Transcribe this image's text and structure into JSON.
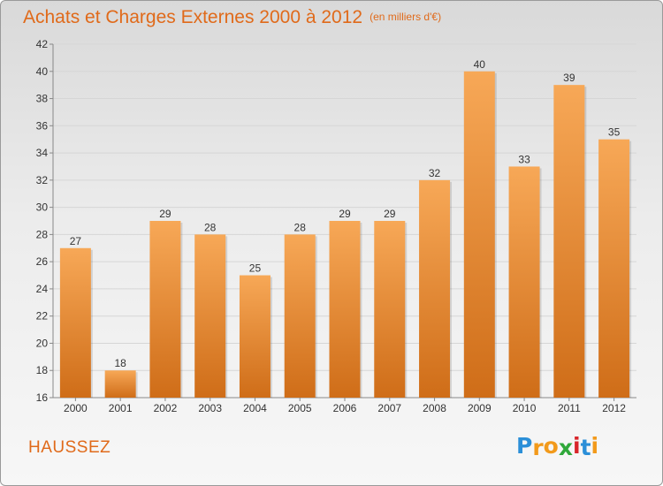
{
  "header": {
    "title": "Achats et Charges Externes 2000 à 2012",
    "unit": "(en milliers d'€)"
  },
  "footer": {
    "commune": "HAUSSEZ",
    "logo_text": "Proxiti",
    "logo_letters": [
      "P",
      "r",
      "o",
      "x",
      "i",
      "t",
      "i"
    ],
    "logo_colors": [
      "#2b8fd8",
      "#f29a1b",
      "#f29a1b",
      "#2fa83a",
      "#d8262b",
      "#2b8fd8",
      "#f29a1b"
    ]
  },
  "colors": {
    "accent": "#e06a1a",
    "bar_top": "#f7a857",
    "bar_bottom": "#cf6d18"
  },
  "chart_data": {
    "type": "bar",
    "title": "Achats et Charges Externes 2000 à 2012",
    "subtitle": "(en milliers d'€)",
    "categories": [
      "2000",
      "2001",
      "2002",
      "2003",
      "2004",
      "2005",
      "2006",
      "2007",
      "2008",
      "2009",
      "2010",
      "2011",
      "2012"
    ],
    "values": [
      27,
      18,
      29,
      28,
      25,
      28,
      29,
      29,
      32,
      40,
      33,
      39,
      35
    ],
    "ylim": [
      16,
      42
    ],
    "yticks": [
      16,
      18,
      20,
      22,
      24,
      26,
      28,
      30,
      32,
      34,
      36,
      38,
      40,
      42
    ],
    "grid": true,
    "legend": "none"
  }
}
